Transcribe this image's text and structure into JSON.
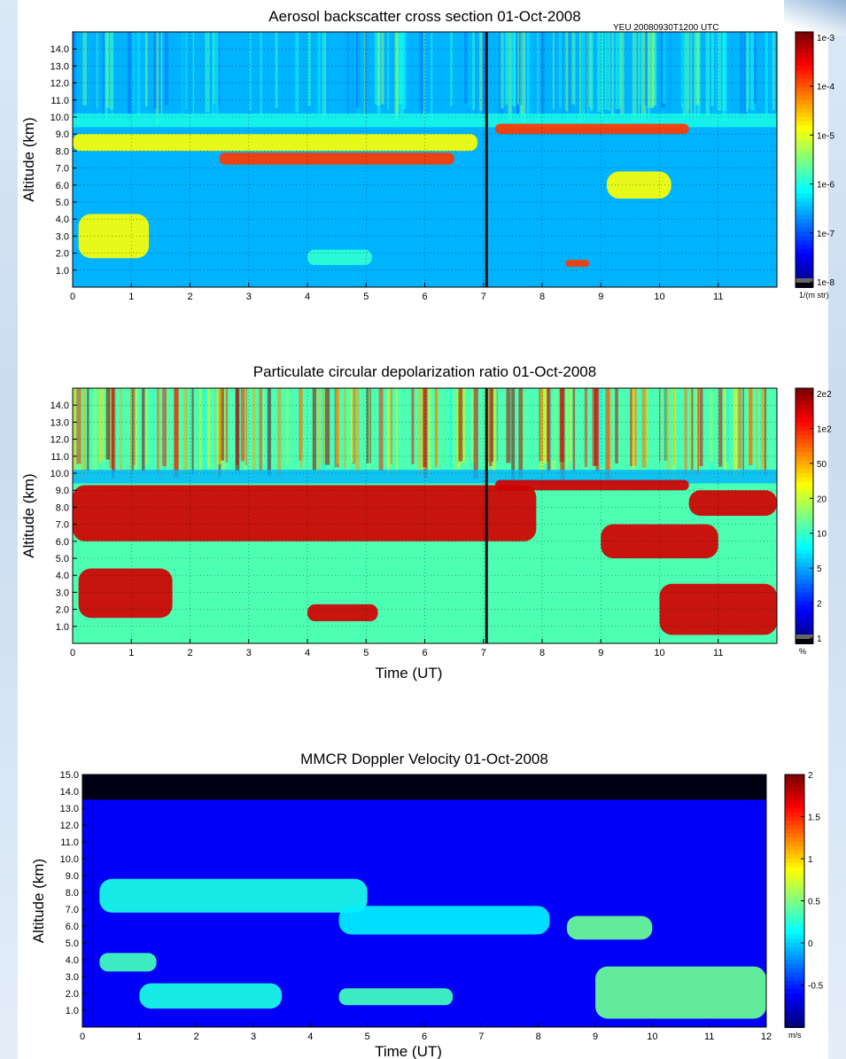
{
  "chart_data": [
    {
      "type": "heatmap",
      "title": "Aerosol backscatter cross section  01-Oct-2008",
      "annotation": "YEU   20080930T1200  UTC",
      "ylabel": "Altitude (km)",
      "xlabel": "",
      "x_ticks": [
        "0",
        "1",
        "2",
        "3",
        "4",
        "5",
        "6",
        "7",
        "8",
        "9",
        "10",
        "11"
      ],
      "y_ticks": [
        "1.0",
        "2.0",
        "3.0",
        "4.0",
        "5.0",
        "6.0",
        "7.0",
        "8.0",
        "9.0",
        "10.0",
        "11.0",
        "12.0",
        "13.0",
        "14.0"
      ],
      "xlim": [
        0,
        12
      ],
      "ylim": [
        0,
        15
      ],
      "grid": true,
      "colorbar": {
        "scale": "log",
        "ticks": [
          "1e-3",
          "1e-4",
          "1e-5",
          "1e-6",
          "1e-7",
          "1e-8"
        ],
        "unit": "1/(m str)"
      },
      "regions": [
        {
          "desc": "aerosol layer",
          "x": [
            0,
            12
          ],
          "y": [
            5.0,
            6.4
          ],
          "value": "1e-7"
        },
        {
          "desc": "cirrus band",
          "x": [
            0,
            6.9
          ],
          "y": [
            8.0,
            9.0
          ],
          "value": "1e-5"
        },
        {
          "desc": "cirrus core",
          "x": [
            2.5,
            6.5
          ],
          "y": [
            7.2,
            7.9
          ],
          "value": "1e-4"
        },
        {
          "desc": "upper cirrus",
          "x": [
            7.2,
            10.5
          ],
          "y": [
            9.0,
            9.6
          ],
          "value": "1e-4"
        },
        {
          "desc": "cloud segment",
          "x": [
            9.1,
            10.2
          ],
          "y": [
            5.2,
            6.8
          ],
          "value": "1e-5"
        },
        {
          "desc": "low cloud",
          "x": [
            0.1,
            1.3
          ],
          "y": [
            1.7,
            4.3
          ],
          "value": "1e-5"
        },
        {
          "desc": "low cloud",
          "x": [
            4.0,
            5.1
          ],
          "y": [
            1.3,
            2.2
          ],
          "value": "1e-6"
        },
        {
          "desc": "low cloud",
          "x": [
            8.4,
            8.8
          ],
          "y": [
            1.2,
            1.6
          ],
          "value": "1e-4"
        }
      ]
    },
    {
      "type": "heatmap",
      "title": "Particulate circular depolarization ratio  01-Oct-2008",
      "ylabel": "Altitude (km)",
      "xlabel": "Time (UT)",
      "x_ticks": [
        "0",
        "1",
        "2",
        "3",
        "4",
        "5",
        "6",
        "7",
        "8",
        "9",
        "10",
        "11"
      ],
      "y_ticks": [
        "1.0",
        "2.0",
        "3.0",
        "4.0",
        "5.0",
        "6.0",
        "7.0",
        "8.0",
        "9.0",
        "10.0",
        "11.0",
        "12.0",
        "13.0",
        "14.0"
      ],
      "xlim": [
        0,
        12
      ],
      "ylim": [
        0,
        15
      ],
      "grid": true,
      "colorbar": {
        "scale": "log",
        "ticks": [
          "2e2",
          "1e2",
          "50",
          "20",
          "10",
          "5",
          "2",
          "1"
        ],
        "unit": "%"
      },
      "regions": [
        {
          "desc": "cirrus band",
          "x": [
            0,
            7.9
          ],
          "y": [
            6.0,
            9.3
          ],
          "value": "50-100"
        },
        {
          "desc": "upper cirrus",
          "x": [
            7.2,
            10.5
          ],
          "y": [
            9.0,
            9.6
          ],
          "value": "50-100"
        },
        {
          "desc": "cloud segment",
          "x": [
            9.0,
            11.0
          ],
          "y": [
            5.0,
            7.0
          ],
          "value": "50-100"
        },
        {
          "desc": "cloud segment",
          "x": [
            10.5,
            12.0
          ],
          "y": [
            7.5,
            9.0
          ],
          "value": "50-100"
        },
        {
          "desc": "low cloud",
          "x": [
            0.1,
            1.7
          ],
          "y": [
            1.5,
            4.4
          ],
          "value": "50-100"
        },
        {
          "desc": "low cloud",
          "x": [
            10.0,
            12.0
          ],
          "y": [
            0.5,
            3.5
          ],
          "value": "50-100"
        },
        {
          "desc": "low cloud",
          "x": [
            4.0,
            5.2
          ],
          "y": [
            1.3,
            2.3
          ],
          "value": "50-100"
        }
      ]
    },
    {
      "type": "heatmap",
      "title": "MMCR Doppler Velocity   01-Oct-2008",
      "ylabel": "Altitude (km)",
      "xlabel": "Time (UT)",
      "x_ticks": [
        "0",
        "1",
        "2",
        "3",
        "4",
        "5",
        "6",
        "7",
        "8",
        "9",
        "10",
        "11",
        "12"
      ],
      "y_ticks": [
        "1.0",
        "2.0",
        "3.0",
        "4.0",
        "5.0",
        "6.0",
        "7.0",
        "8.0",
        "9.0",
        "10.0",
        "11.0",
        "12.0",
        "13.0",
        "14.0",
        "15.0"
      ],
      "xlim": [
        0,
        12
      ],
      "ylim": [
        0,
        15
      ],
      "grid": false,
      "colorbar": {
        "scale": "linear",
        "ticks": [
          "2",
          "1.5",
          "1",
          "0.5",
          "0",
          "-0.5"
        ],
        "unit": "m/s",
        "range": [
          -1,
          2
        ]
      },
      "regions": [
        {
          "desc": "no data",
          "x": [
            0,
            12
          ],
          "y": [
            13.5,
            15.0
          ],
          "value": "none"
        },
        {
          "desc": "cloud band",
          "x": [
            0.3,
            5.0
          ],
          "y": [
            6.8,
            8.8
          ],
          "value": "0.2"
        },
        {
          "desc": "cloud band",
          "x": [
            4.5,
            8.2
          ],
          "y": [
            5.5,
            7.2
          ],
          "value": "0.1"
        },
        {
          "desc": "cloud segment",
          "x": [
            8.5,
            10.0
          ],
          "y": [
            5.2,
            6.6
          ],
          "value": "0.4"
        },
        {
          "desc": "low cloud",
          "x": [
            0.3,
            1.3
          ],
          "y": [
            3.3,
            4.4
          ],
          "value": "0.3"
        },
        {
          "desc": "low cloud",
          "x": [
            1.0,
            3.5
          ],
          "y": [
            1.1,
            2.6
          ],
          "value": "0.2"
        },
        {
          "desc": "low cloud",
          "x": [
            4.5,
            6.5
          ],
          "y": [
            1.3,
            2.3
          ],
          "value": "0.3"
        },
        {
          "desc": "low cloud",
          "x": [
            9.0,
            12.0
          ],
          "y": [
            0.5,
            3.6
          ],
          "value": "0.4"
        }
      ]
    }
  ]
}
